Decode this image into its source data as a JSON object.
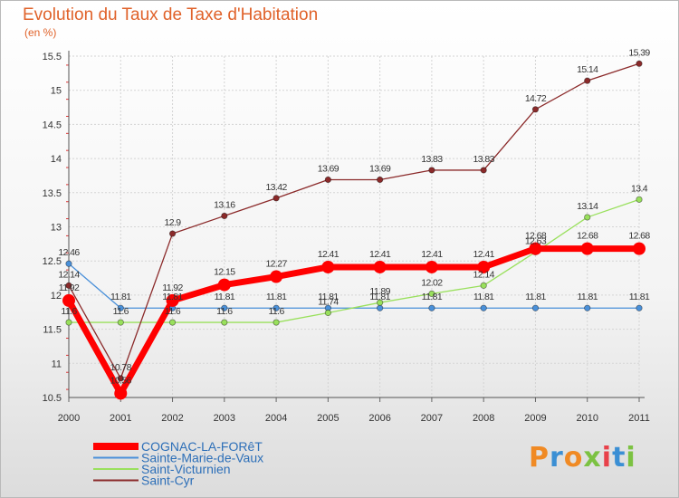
{
  "header": {
    "title": "Evolution du Taux de Taxe d'Habitation",
    "unit": "(en %)"
  },
  "logo": {
    "text": "Proxiti",
    "colors": [
      "#f08a24",
      "#3b8fd4",
      "#f08a24",
      "#7cc242",
      "#e8414a",
      "#3b8fd4",
      "#7cc242"
    ]
  },
  "chart_data": {
    "type": "line",
    "title": "Evolution du Taux de Taxe d'Habitation",
    "ylabel": "(en %)",
    "xlabel": "",
    "ylim": [
      10.5,
      15.5
    ],
    "yticks": [
      "10.5",
      "11",
      "11.5",
      "12",
      "12.5",
      "13",
      "13.5",
      "14",
      "14.5",
      "15",
      "15.5"
    ],
    "categories": [
      "2000",
      "2001",
      "2002",
      "2003",
      "2004",
      "2005",
      "2006",
      "2007",
      "2008",
      "2009",
      "2010",
      "2011"
    ],
    "grid": true,
    "legend": "bottom-left",
    "series": [
      {
        "name": "COGNAC-LA-FORêT",
        "color": "#ff0000",
        "emphasis": true,
        "values": [
          11.92,
          10.56,
          11.92,
          12.15,
          12.27,
          12.41,
          12.41,
          12.41,
          12.41,
          12.68,
          12.68,
          12.68
        ],
        "labels": [
          "11.92",
          "10.56",
          "11.92",
          "12.15",
          "12.27",
          "12.41",
          "12.41",
          "12.41",
          "12.41",
          "12.68",
          "12.68",
          "12.68"
        ]
      },
      {
        "name": "Sainte-Marie-de-Vaux",
        "color": "#4a90d9",
        "emphasis": false,
        "values": [
          12.46,
          11.81,
          11.81,
          11.81,
          11.81,
          11.81,
          11.81,
          11.81,
          11.81,
          11.81,
          11.81,
          11.81
        ],
        "labels": [
          "12.46",
          "11.81",
          "11.81",
          "11.81",
          "11.81",
          "11.81",
          "11.81",
          "11.81",
          "11.81",
          "11.81",
          "11.81",
          "11.81"
        ]
      },
      {
        "name": "Saint-Victurnien",
        "color": "#99e05c",
        "emphasis": false,
        "values": [
          11.6,
          11.6,
          11.6,
          11.6,
          11.6,
          11.74,
          11.89,
          12.02,
          12.14,
          12.63,
          13.14,
          13.4
        ],
        "labels": [
          "11.6",
          "11.6",
          "11.6",
          "11.6",
          "11.6",
          "11.74",
          "11.89",
          "12.02",
          "12.14",
          "12.63",
          "13.14",
          "13.4"
        ]
      },
      {
        "name": "Saint-Cyr",
        "color": "#8b2a2a",
        "emphasis": false,
        "values": [
          12.14,
          10.78,
          12.9,
          13.16,
          13.42,
          13.69,
          13.69,
          13.83,
          13.83,
          14.72,
          15.14,
          15.39
        ],
        "labels": [
          "12.14",
          "10.78",
          "12.9",
          "13.16",
          "13.42",
          "13.69",
          "13.69",
          "13.83",
          "13.83",
          "14.72",
          "15.14",
          "15.39"
        ]
      }
    ]
  }
}
